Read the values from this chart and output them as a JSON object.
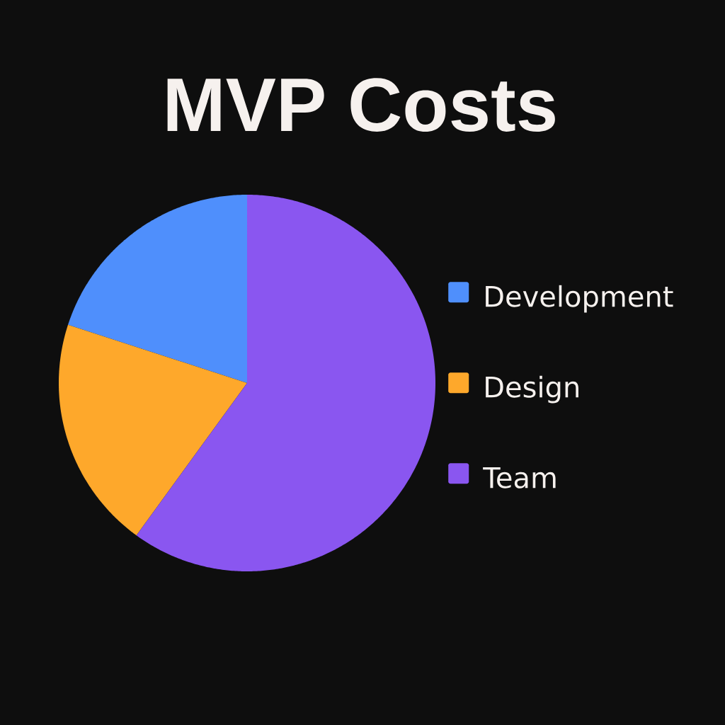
{
  "chart_data": {
    "type": "pie",
    "title": "MVP Costs",
    "categories": [
      "Development",
      "Design",
      "Team"
    ],
    "values": [
      20,
      20,
      60
    ],
    "colors": [
      "#4f8ffc",
      "#fea82b",
      "#8a56f0"
    ],
    "legend": "right"
  }
}
